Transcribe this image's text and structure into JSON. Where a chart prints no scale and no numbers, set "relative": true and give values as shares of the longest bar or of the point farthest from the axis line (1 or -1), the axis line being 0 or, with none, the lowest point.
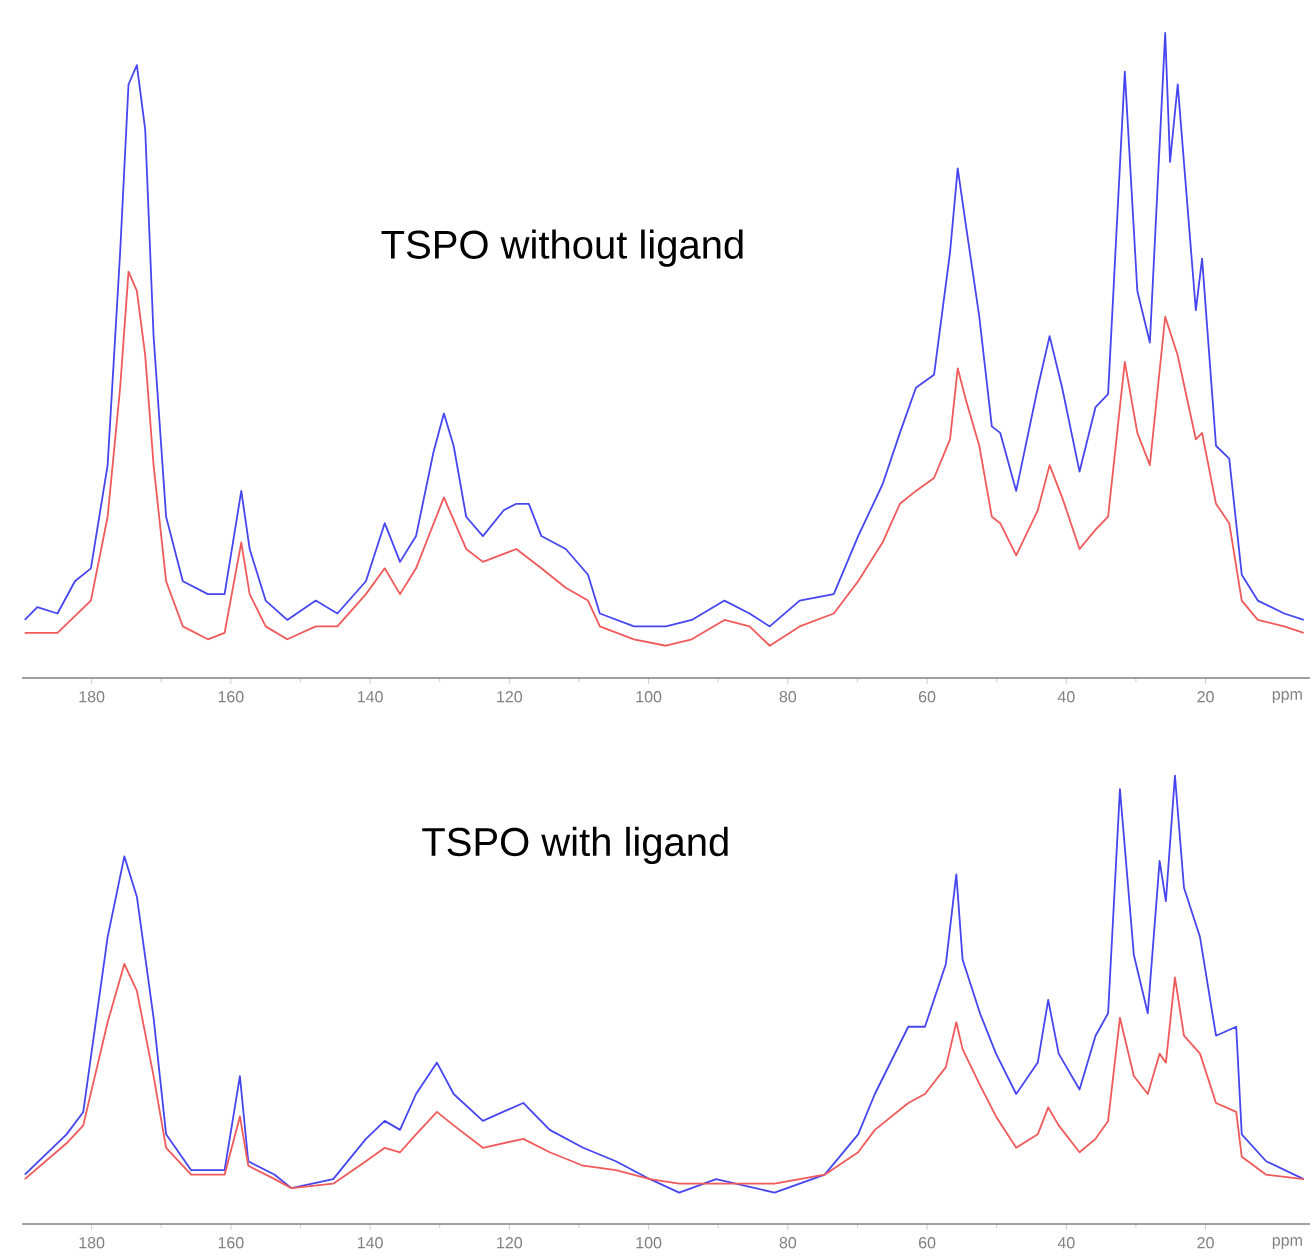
{
  "chart_data": [
    {
      "type": "line",
      "title": "TSPO without ligand",
      "xlabel": "ppm",
      "relative": true,
      "xlim": [
        190,
        5
      ],
      "xticks": [
        180,
        160,
        140,
        120,
        100,
        80,
        60,
        40,
        20
      ],
      "series": [
        {
          "color": "#4646f0",
          "x": [
            189.6,
            187.8,
            184.9,
            182.4,
            180.1,
            177.7,
            175.9,
            174.7,
            173.5,
            172.3,
            171.1,
            169.3,
            166.9,
            163.3,
            160.9,
            158.5,
            157.3,
            155.0,
            151.9,
            147.8,
            144.7,
            140.6,
            137.9,
            135.7,
            133.4,
            130.9,
            129.4,
            128.0,
            126.2,
            123.8,
            120.8,
            119.0,
            117.2,
            115.4,
            111.9,
            108.7,
            107.0,
            102.1,
            97.5,
            93.8,
            89.1,
            85.5,
            82.6,
            78.3,
            73.4,
            69.9,
            66.4,
            63.9,
            61.6,
            59.0,
            56.7,
            55.6,
            54.4,
            52.5,
            50.7,
            49.5,
            47.2,
            44.1,
            42.4,
            40.6,
            38.1,
            35.8,
            34.0,
            31.6,
            29.8,
            28.0,
            25.8,
            25.1,
            24.0,
            21.4,
            20.5,
            18.5,
            16.6,
            14.8,
            12.5,
            8.7,
            5.9
          ],
          "values": [
            0.09,
            0.11,
            0.1,
            0.15,
            0.17,
            0.33,
            0.66,
            0.92,
            0.95,
            0.85,
            0.53,
            0.25,
            0.15,
            0.13,
            0.13,
            0.29,
            0.2,
            0.12,
            0.09,
            0.12,
            0.1,
            0.15,
            0.24,
            0.18,
            0.22,
            0.35,
            0.41,
            0.36,
            0.25,
            0.22,
            0.26,
            0.27,
            0.27,
            0.22,
            0.2,
            0.16,
            0.1,
            0.08,
            0.08,
            0.09,
            0.12,
            0.1,
            0.08,
            0.12,
            0.13,
            0.22,
            0.3,
            0.38,
            0.45,
            0.47,
            0.66,
            0.79,
            0.7,
            0.56,
            0.39,
            0.38,
            0.29,
            0.45,
            0.53,
            0.45,
            0.32,
            0.42,
            0.44,
            0.94,
            0.6,
            0.52,
            1.0,
            0.8,
            0.92,
            0.57,
            0.65,
            0.36,
            0.34,
            0.16,
            0.12,
            0.1,
            0.09
          ]
        },
        {
          "color": "#f05a5a",
          "x": [
            189.6,
            184.9,
            180.1,
            177.7,
            175.9,
            174.7,
            173.5,
            172.3,
            171.1,
            169.3,
            166.9,
            163.3,
            160.9,
            158.5,
            157.3,
            155.0,
            151.9,
            147.8,
            144.7,
            140.6,
            137.9,
            135.7,
            133.4,
            129.4,
            126.2,
            123.8,
            119.0,
            115.4,
            111.9,
            108.7,
            107.0,
            102.1,
            97.5,
            93.8,
            89.1,
            85.5,
            82.6,
            78.3,
            73.4,
            69.9,
            66.4,
            63.9,
            61.6,
            59.0,
            56.7,
            55.6,
            54.4,
            52.5,
            50.7,
            49.5,
            47.2,
            44.1,
            42.4,
            40.6,
            38.1,
            35.8,
            34.0,
            31.6,
            29.8,
            28.0,
            25.8,
            24.0,
            21.4,
            20.5,
            18.5,
            16.6,
            14.8,
            12.5,
            8.7,
            5.9
          ],
          "values": [
            0.07,
            0.07,
            0.12,
            0.25,
            0.45,
            0.63,
            0.6,
            0.5,
            0.33,
            0.15,
            0.08,
            0.06,
            0.07,
            0.21,
            0.13,
            0.08,
            0.06,
            0.08,
            0.08,
            0.13,
            0.17,
            0.13,
            0.17,
            0.28,
            0.2,
            0.18,
            0.2,
            0.17,
            0.14,
            0.12,
            0.08,
            0.06,
            0.05,
            0.06,
            0.09,
            0.08,
            0.05,
            0.08,
            0.1,
            0.15,
            0.21,
            0.27,
            0.29,
            0.31,
            0.37,
            0.48,
            0.43,
            0.36,
            0.25,
            0.24,
            0.19,
            0.26,
            0.33,
            0.28,
            0.2,
            0.23,
            0.25,
            0.49,
            0.38,
            0.33,
            0.56,
            0.5,
            0.37,
            0.38,
            0.27,
            0.24,
            0.12,
            0.09,
            0.08,
            0.07
          ]
        }
      ]
    },
    {
      "type": "line",
      "title": "TSPO with ligand",
      "xlabel": "ppm",
      "relative": true,
      "xlim": [
        190,
        5
      ],
      "xticks": [
        180,
        160,
        140,
        120,
        100,
        80,
        60,
        40,
        20
      ],
      "series": [
        {
          "color": "#4646f0",
          "x": [
            189.6,
            183.6,
            181.2,
            177.7,
            175.3,
            173.5,
            171.1,
            169.3,
            165.7,
            160.9,
            158.7,
            157.5,
            153.7,
            151.3,
            145.3,
            140.6,
            137.9,
            135.7,
            133.4,
            130.4,
            128.0,
            123.8,
            118.0,
            114.2,
            109.4,
            104.7,
            99.8,
            95.6,
            90.3,
            81.9,
            74.7,
            69.9,
            67.5,
            62.7,
            60.3,
            57.3,
            55.8,
            54.9,
            52.4,
            50.1,
            47.2,
            44.1,
            42.6,
            41.1,
            38.1,
            35.8,
            34.0,
            32.3,
            30.3,
            28.3,
            26.6,
            25.7,
            24.4,
            23.1,
            20.8,
            18.5,
            15.6,
            14.8,
            11.3,
            5.9
          ],
          "values": [
            0.11,
            0.2,
            0.25,
            0.64,
            0.82,
            0.73,
            0.46,
            0.2,
            0.12,
            0.12,
            0.33,
            0.14,
            0.11,
            0.08,
            0.1,
            0.19,
            0.23,
            0.21,
            0.29,
            0.36,
            0.29,
            0.23,
            0.27,
            0.21,
            0.17,
            0.14,
            0.1,
            0.07,
            0.1,
            0.07,
            0.11,
            0.2,
            0.29,
            0.44,
            0.44,
            0.58,
            0.78,
            0.59,
            0.47,
            0.38,
            0.29,
            0.36,
            0.5,
            0.38,
            0.3,
            0.42,
            0.47,
            0.97,
            0.6,
            0.47,
            0.81,
            0.72,
            1.0,
            0.75,
            0.64,
            0.42,
            0.44,
            0.2,
            0.14,
            0.1
          ]
        },
        {
          "color": "#f05a5a",
          "x": [
            189.6,
            183.6,
            181.2,
            177.7,
            175.3,
            173.5,
            171.1,
            169.3,
            165.7,
            160.9,
            158.7,
            157.5,
            153.7,
            151.3,
            145.3,
            140.6,
            137.9,
            135.7,
            133.4,
            130.4,
            128.0,
            123.8,
            118.0,
            114.2,
            109.4,
            104.7,
            99.8,
            95.6,
            90.3,
            81.9,
            74.7,
            69.9,
            67.5,
            62.7,
            60.3,
            57.3,
            55.8,
            54.9,
            52.4,
            50.1,
            47.2,
            44.1,
            42.6,
            41.1,
            38.1,
            35.8,
            34.0,
            32.3,
            30.3,
            28.3,
            26.6,
            25.7,
            24.4,
            23.1,
            20.8,
            18.5,
            15.6,
            14.8,
            11.3,
            5.9
          ],
          "values": [
            0.1,
            0.18,
            0.22,
            0.45,
            0.58,
            0.52,
            0.33,
            0.17,
            0.11,
            0.11,
            0.24,
            0.13,
            0.1,
            0.08,
            0.09,
            0.14,
            0.17,
            0.16,
            0.2,
            0.25,
            0.22,
            0.17,
            0.19,
            0.16,
            0.13,
            0.12,
            0.1,
            0.09,
            0.09,
            0.09,
            0.11,
            0.16,
            0.21,
            0.27,
            0.29,
            0.35,
            0.45,
            0.39,
            0.31,
            0.24,
            0.17,
            0.2,
            0.26,
            0.22,
            0.16,
            0.19,
            0.23,
            0.46,
            0.33,
            0.29,
            0.38,
            0.36,
            0.55,
            0.42,
            0.38,
            0.27,
            0.25,
            0.15,
            0.11,
            0.1
          ]
        }
      ]
    }
  ]
}
